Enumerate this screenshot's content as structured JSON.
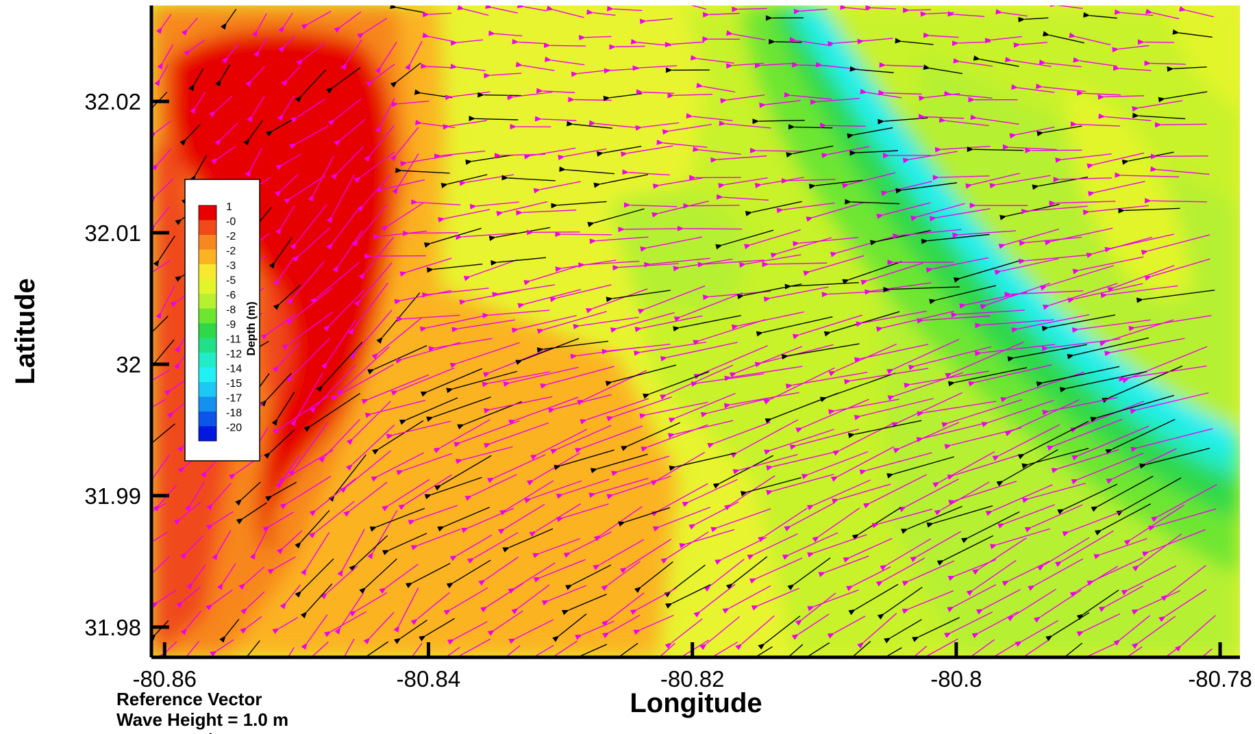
{
  "chart_data": {
    "type": "contour_vector",
    "xlabel": "Longitude",
    "ylabel": "Latitude",
    "xlim": [
      -80.861,
      -80.7785
    ],
    "ylim": [
      31.9777,
      32.0273
    ],
    "x_ticks": [
      -80.86,
      -80.84,
      -80.82,
      -80.8,
      -80.78
    ],
    "x_tick_labels": [
      "-80.86",
      "-80.84",
      "-80.82",
      "-80.8",
      "-80.78"
    ],
    "y_ticks": [
      31.98,
      31.99,
      32.0,
      32.01,
      32.02
    ],
    "y_tick_labels": [
      "31.98",
      "31.99",
      "32",
      "32.01",
      "32.02"
    ],
    "legend": {
      "title": "Depth (m)",
      "placement": "left",
      "levels": [
        {
          "label": "1",
          "color": "#e60000"
        },
        {
          "label": "-0",
          "color": "#f04a1a"
        },
        {
          "label": "-2",
          "color": "#f7871f"
        },
        {
          "label": "-2",
          "color": "#fbb324"
        },
        {
          "label": "-3",
          "color": "#f7e830"
        },
        {
          "label": "-5",
          "color": "#e2f52a"
        },
        {
          "label": "-6",
          "color": "#b6f030"
        },
        {
          "label": "-8",
          "color": "#6de630"
        },
        {
          "label": "-9",
          "color": "#2fd84a"
        },
        {
          "label": "-11",
          "color": "#22e08a"
        },
        {
          "label": "-12",
          "color": "#22ecc8"
        },
        {
          "label": "-14",
          "color": "#22f0f4"
        },
        {
          "label": "-15",
          "color": "#1ec8f4"
        },
        {
          "label": "-17",
          "color": "#1490ee"
        },
        {
          "label": "-18",
          "color": "#0c55e8"
        },
        {
          "label": "-20",
          "color": "#0018e0"
        }
      ]
    },
    "reference_vector": {
      "line1": "Reference Vector",
      "line2": "Wave Height = 1.0 m",
      "value_m": 1.0
    },
    "vector_series": [
      {
        "color": "#ee00ee",
        "description": "magenta arrows"
      },
      {
        "color": "#000000",
        "description": "black arrows"
      }
    ],
    "dominant_direction": "from east-southeast toward west-northwest"
  }
}
